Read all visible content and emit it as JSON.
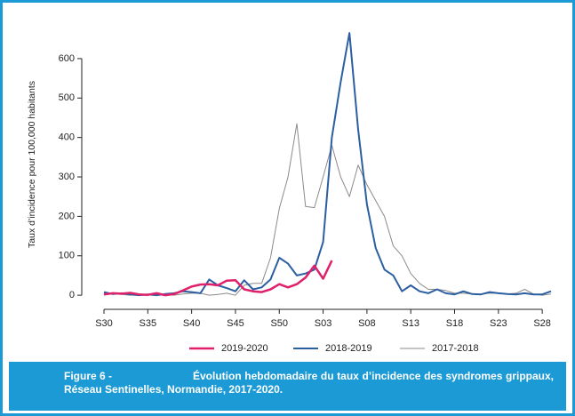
{
  "chart_data": {
    "type": "line",
    "y_label": "Taux d’incidence pour 100,000 habitants",
    "caption_label": "Figure 6 -",
    "caption": "Évolution hebdomadaire du taux d’incidence des syndromes grippaux, Réseau Sentinelles, Normandie, 2017-2020.",
    "categories": [
      "S30",
      null,
      null,
      null,
      null,
      "S35",
      null,
      null,
      null,
      null,
      "S40",
      null,
      null,
      null,
      null,
      "S45",
      null,
      null,
      null,
      null,
      "S50",
      null,
      null,
      null,
      null,
      "S03",
      null,
      null,
      null,
      null,
      "S08",
      null,
      null,
      null,
      null,
      "S13",
      null,
      null,
      null,
      null,
      "S18",
      null,
      null,
      null,
      null,
      "S23",
      null,
      null,
      null,
      null,
      "S28",
      null
    ],
    "ylim": [
      -20,
      690
    ],
    "yticks": [
      0,
      100,
      200,
      300,
      400,
      500,
      600
    ],
    "series": [
      {
        "name": "2019-2020",
        "color": "#e0206a",
        "width": 2.5,
        "values": [
          2,
          5,
          4,
          6,
          2,
          1,
          5,
          0,
          3,
          12,
          22,
          27,
          28,
          25,
          37,
          38,
          15,
          10,
          8,
          15,
          28,
          20,
          28,
          45,
          75,
          42,
          88,
          null,
          null,
          null,
          null,
          null,
          null,
          null,
          null,
          null,
          null,
          null,
          null,
          null,
          null,
          null,
          null,
          null,
          null,
          null,
          null,
          null,
          null,
          null,
          null,
          null
        ]
      },
      {
        "name": "2018-2019",
        "color": "#2b5fa0",
        "width": 2,
        "values": [
          8,
          3,
          5,
          2,
          0,
          2,
          0,
          3,
          5,
          10,
          8,
          5,
          40,
          25,
          18,
          10,
          38,
          15,
          20,
          40,
          95,
          80,
          50,
          55,
          65,
          135,
          400,
          540,
          665,
          420,
          230,
          120,
          65,
          50,
          10,
          25,
          10,
          5,
          15,
          5,
          2,
          10,
          3,
          2,
          8,
          5,
          3,
          2,
          5,
          2,
          2,
          10
        ]
      },
      {
        "name": "2017-2018",
        "color": "#8a8a8a",
        "width": 1,
        "values": [
          5,
          3,
          2,
          0,
          2,
          0,
          3,
          2,
          0,
          3,
          5,
          5,
          0,
          2,
          5,
          0,
          25,
          30,
          30,
          95,
          220,
          300,
          435,
          225,
          222,
          300,
          380,
          300,
          250,
          330,
          280,
          240,
          200,
          125,
          100,
          55,
          30,
          15,
          15,
          12,
          5,
          5,
          3,
          3,
          5,
          5,
          3,
          5,
          15,
          3,
          0,
          3
        ]
      }
    ]
  }
}
